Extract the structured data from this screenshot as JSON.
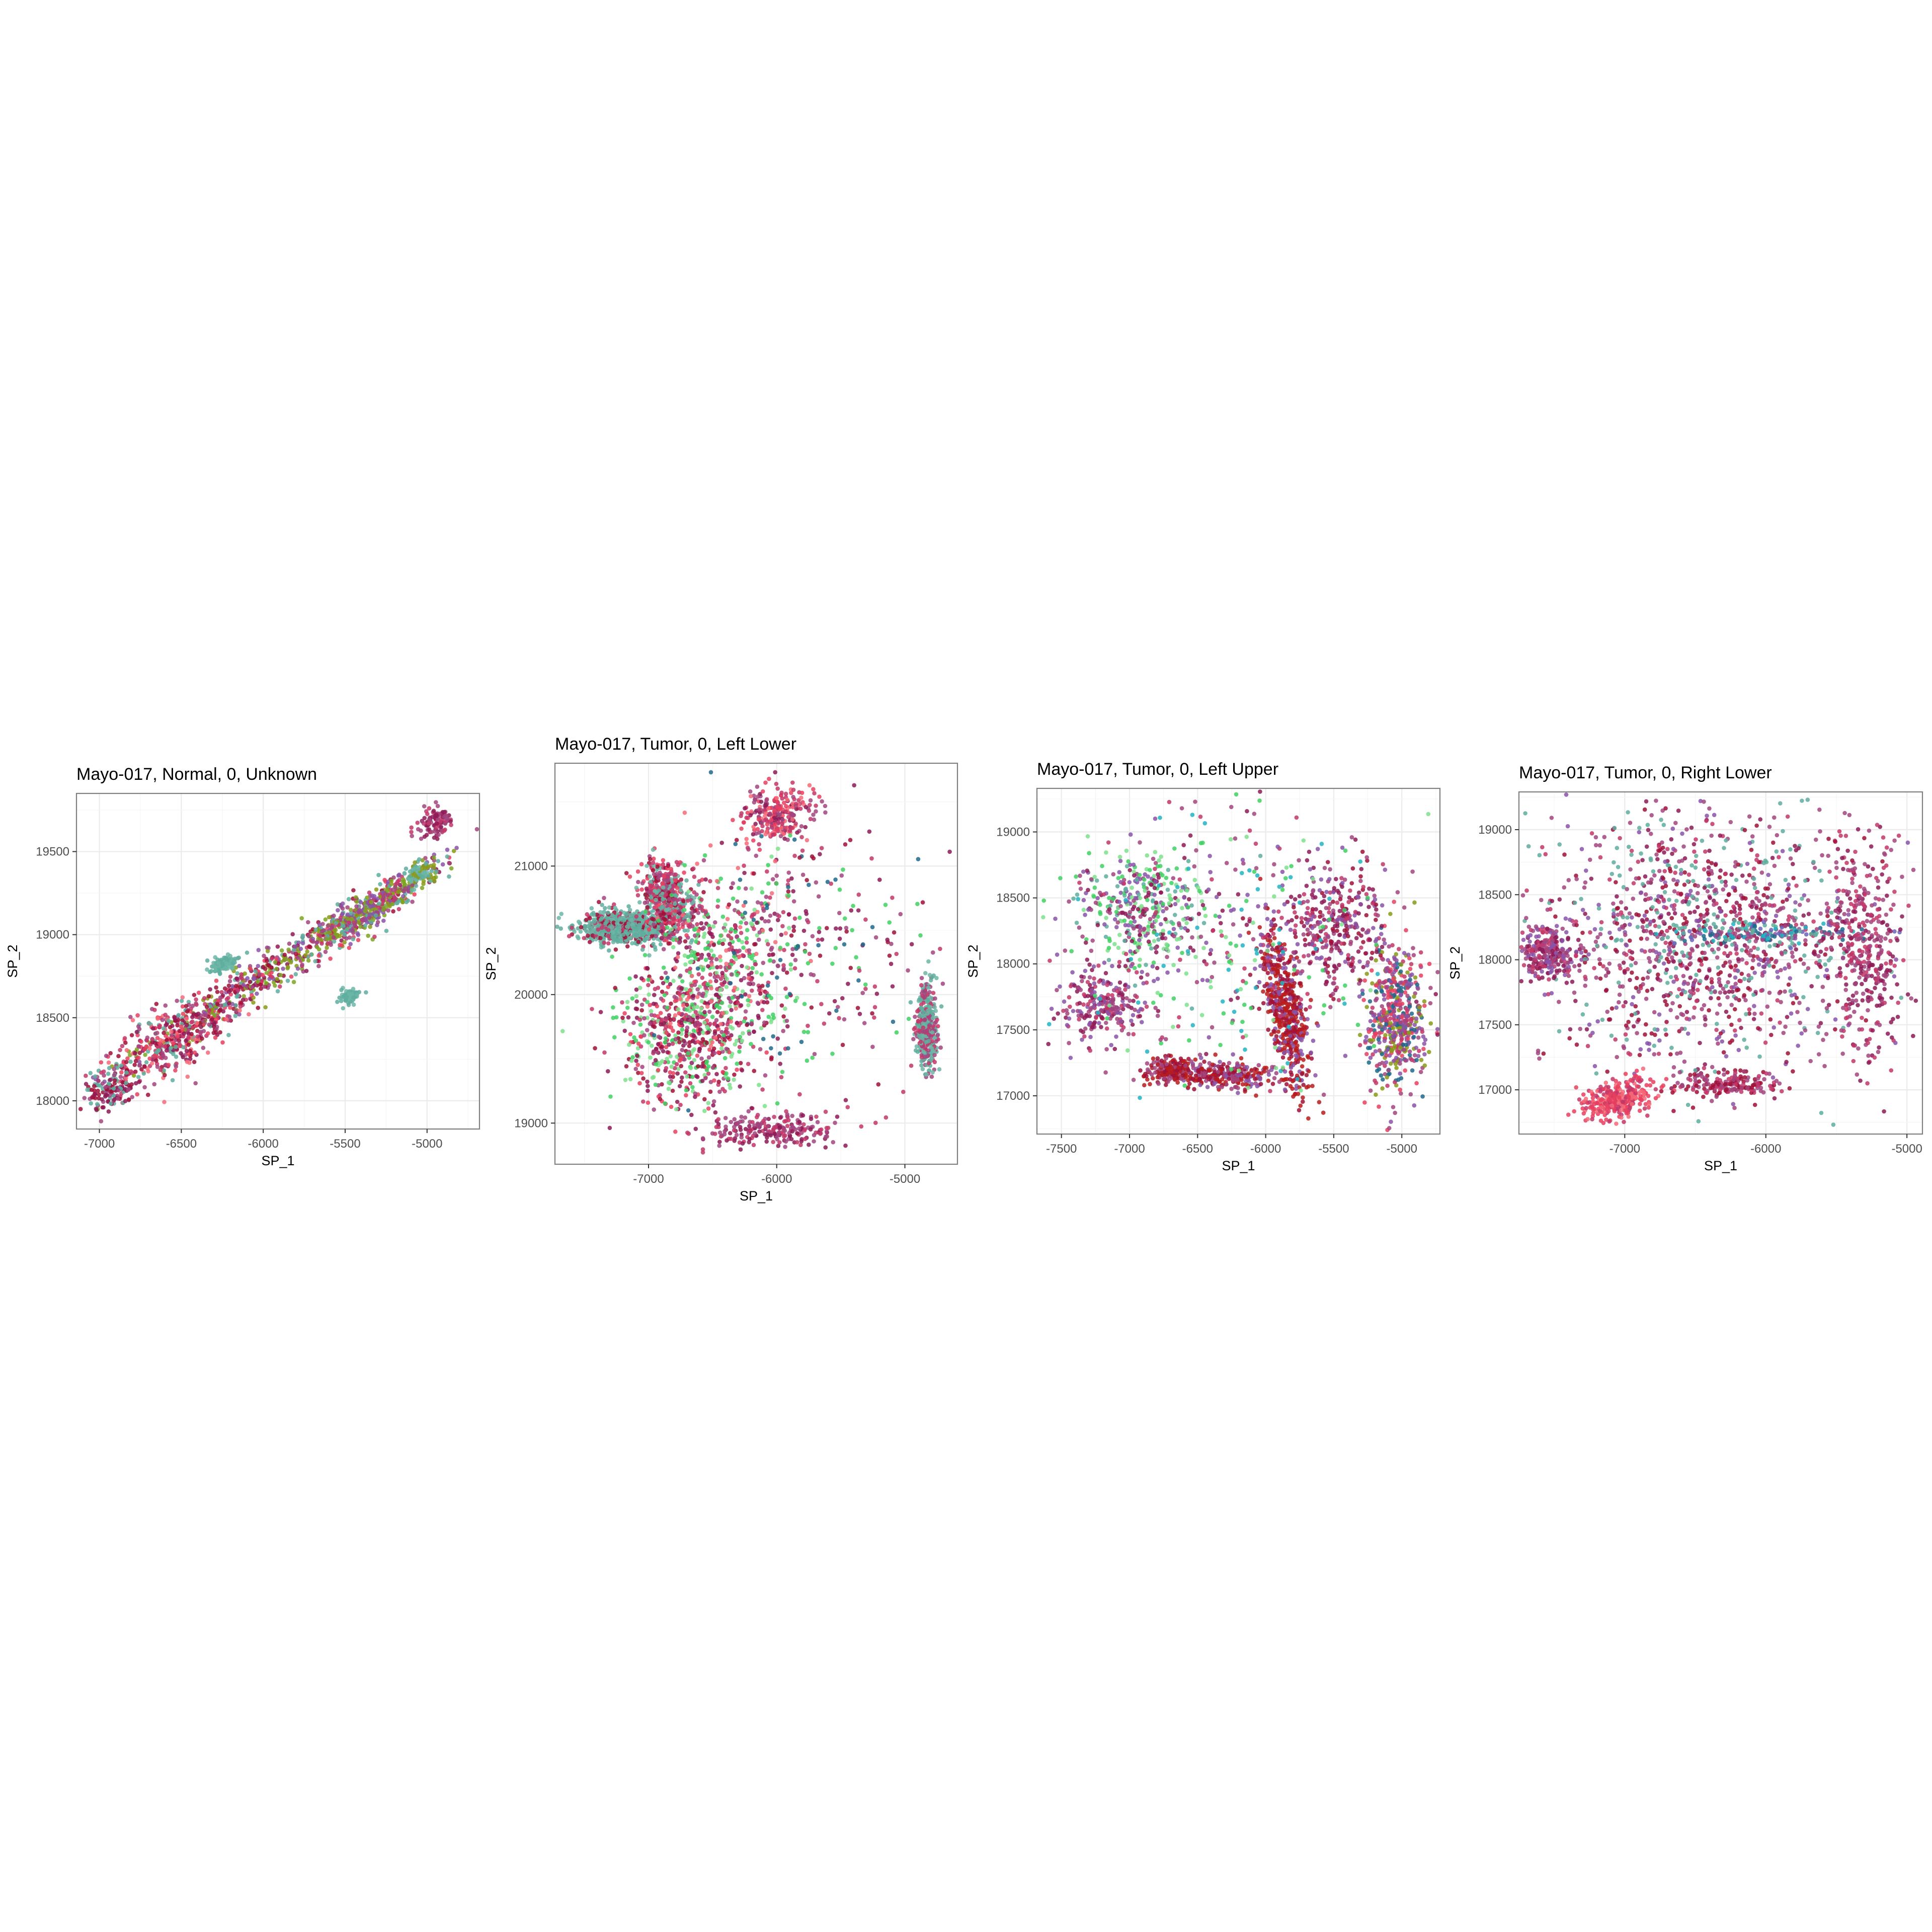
{
  "figure": {
    "background": "#ffffff",
    "panel_border": "#7f7f7f",
    "grid_major": "#ebebeb",
    "grid_minor": "#f5f5f5"
  },
  "palette": [
    "#a2457e",
    "#c3376a",
    "#8e1a56",
    "#a01038",
    "#b81c1c",
    "#e8405f",
    "#f46a78",
    "#5fae9f",
    "#6cb6a6",
    "#8a9a18",
    "#7ea522",
    "#8a53a8",
    "#6b62b8",
    "#3fd062",
    "#7ee08c",
    "#22b3c2",
    "#1f6a8c",
    "#a8c6e6",
    "#d17a3a"
  ],
  "chart_data": [
    {
      "type": "scatter",
      "title": "Mayo-017, Normal, 0, Unknown",
      "xlabel": "SP_1",
      "ylabel": "SP_2",
      "xlim": [
        -7140,
        -4680
      ],
      "ylim": [
        17830,
        19850
      ],
      "xticks": [
        -7000,
        -6500,
        -6000,
        -5500,
        -5000
      ],
      "yticks": [
        18000,
        18500,
        19000,
        19500
      ],
      "grid": true,
      "legend": "none",
      "points_note": "",
      "regions": [
        {
          "cx": -6000,
          "cy": 18750,
          "rx": 1050,
          "ry": 110,
          "angle": 32,
          "n": 700,
          "colors": [
            0,
            1,
            2,
            3,
            5,
            9,
            10,
            11,
            7
          ]
        },
        {
          "cx": -5350,
          "cy": 19150,
          "rx": 420,
          "ry": 80,
          "angle": 32,
          "n": 360,
          "colors": [
            9,
            10,
            0,
            1,
            7,
            11
          ]
        },
        {
          "cx": -6580,
          "cy": 18350,
          "rx": 380,
          "ry": 180,
          "angle": 28,
          "n": 320,
          "colors": [
            0,
            1,
            2,
            3,
            5,
            6,
            7
          ]
        },
        {
          "cx": -6930,
          "cy": 18060,
          "rx": 140,
          "ry": 90,
          "angle": 20,
          "n": 120,
          "colors": [
            2,
            0,
            3,
            7
          ]
        },
        {
          "cx": -6250,
          "cy": 18820,
          "rx": 80,
          "ry": 40,
          "angle": 20,
          "n": 110,
          "colors": [
            7,
            8
          ]
        },
        {
          "cx": -5480,
          "cy": 18630,
          "rx": 60,
          "ry": 40,
          "angle": 20,
          "n": 70,
          "colors": [
            7,
            8
          ]
        },
        {
          "cx": -5050,
          "cy": 19370,
          "rx": 90,
          "ry": 60,
          "angle": 30,
          "n": 90,
          "colors": [
            7,
            8,
            9
          ]
        },
        {
          "cx": -4950,
          "cy": 19670,
          "rx": 110,
          "ry": 80,
          "angle": 30,
          "n": 100,
          "colors": [
            0,
            1,
            2
          ]
        }
      ]
    },
    {
      "type": "scatter",
      "title": "Mayo-017, Tumor, 0, Left Lower",
      "xlabel": "SP_1",
      "ylabel": "SP_2",
      "xlim": [
        -7730,
        -4590
      ],
      "ylim": [
        18680,
        21800
      ],
      "xticks": [
        -7000,
        -6000,
        -5000
      ],
      "yticks": [
        19000,
        20000,
        21000
      ],
      "grid": true,
      "legend": "none",
      "regions": [
        {
          "cx": -7200,
          "cy": 20520,
          "rx": 300,
          "ry": 110,
          "angle": 0,
          "n": 900,
          "colors": [
            7,
            8,
            7,
            8,
            3,
            1
          ]
        },
        {
          "cx": -6850,
          "cy": 20750,
          "rx": 180,
          "ry": 260,
          "angle": 20,
          "n": 500,
          "colors": [
            7,
            8,
            1,
            3,
            5,
            0
          ]
        },
        {
          "cx": -6700,
          "cy": 19700,
          "rx": 500,
          "ry": 500,
          "angle": 0,
          "n": 650,
          "colors": [
            0,
            1,
            2,
            3,
            5,
            13,
            14
          ]
        },
        {
          "cx": -6400,
          "cy": 20300,
          "rx": 500,
          "ry": 600,
          "angle": 0,
          "n": 420,
          "colors": [
            0,
            1,
            2,
            13,
            14,
            6
          ]
        },
        {
          "cx": -6000,
          "cy": 21400,
          "rx": 250,
          "ry": 200,
          "angle": 0,
          "n": 260,
          "colors": [
            0,
            1,
            5,
            6,
            2
          ]
        },
        {
          "cx": -4830,
          "cy": 19750,
          "rx": 70,
          "ry": 300,
          "angle": 0,
          "n": 420,
          "colors": [
            7,
            8,
            0,
            1
          ]
        },
        {
          "cx": -6050,
          "cy": 18950,
          "rx": 450,
          "ry": 120,
          "angle": 0,
          "n": 220,
          "colors": [
            0,
            2,
            1
          ]
        },
        {
          "cx": -5800,
          "cy": 20400,
          "rx": 900,
          "ry": 900,
          "angle": 0,
          "n": 260,
          "colors": [
            0,
            1,
            2,
            13,
            16,
            3
          ]
        }
      ]
    },
    {
      "type": "scatter",
      "title": "Mayo-017, Tumor, 0, Left Upper",
      "xlabel": "SP_1",
      "ylabel": "SP_2",
      "xlim": [
        -7680,
        -4720
      ],
      "ylim": [
        16710,
        19330
      ],
      "xticks": [
        -7500,
        -7000,
        -6500,
        -6000,
        -5500,
        -5000
      ],
      "yticks": [
        17000,
        17500,
        18000,
        18500,
        19000
      ],
      "grid": true,
      "legend": "none",
      "regions": [
        {
          "cx": -5850,
          "cy": 17650,
          "rx": 120,
          "ry": 560,
          "angle": 10,
          "n": 520,
          "colors": [
            4,
            4,
            3,
            11
          ]
        },
        {
          "cx": -6300,
          "cy": 17150,
          "rx": 330,
          "ry": 90,
          "angle": 0,
          "n": 260,
          "colors": [
            4,
            3,
            11,
            0
          ]
        },
        {
          "cx": -6700,
          "cy": 17200,
          "rx": 170,
          "ry": 90,
          "angle": 0,
          "n": 200,
          "colors": [
            4,
            3,
            0
          ]
        },
        {
          "cx": -5050,
          "cy": 17600,
          "rx": 200,
          "ry": 500,
          "angle": 0,
          "n": 520,
          "colors": [
            0,
            1,
            11,
            9,
            5,
            16
          ]
        },
        {
          "cx": -6900,
          "cy": 18400,
          "rx": 450,
          "ry": 400,
          "angle": 0,
          "n": 380,
          "colors": [
            0,
            2,
            13,
            14,
            7,
            11
          ]
        },
        {
          "cx": -7200,
          "cy": 17700,
          "rx": 300,
          "ry": 250,
          "angle": 0,
          "n": 240,
          "colors": [
            0,
            1,
            2,
            11
          ]
        },
        {
          "cx": -5500,
          "cy": 18300,
          "rx": 350,
          "ry": 400,
          "angle": 0,
          "n": 320,
          "colors": [
            0,
            1,
            2,
            11,
            3
          ]
        },
        {
          "cx": -6200,
          "cy": 18100,
          "rx": 1200,
          "ry": 1050,
          "angle": 0,
          "n": 360,
          "colors": [
            0,
            1,
            2,
            13,
            14,
            11,
            15
          ]
        }
      ]
    },
    {
      "type": "scatter",
      "title": "Mayo-017, Tumor, 0, Right Lower",
      "xlabel": "SP_1",
      "ylabel": "SP_2",
      "xlim": [
        -7750,
        -4890
      ],
      "ylim": [
        16660,
        19290
      ],
      "xticks": [
        -7000,
        -6000,
        -5000
      ],
      "yticks": [
        17000,
        17500,
        18000,
        18500,
        19000
      ],
      "grid": true,
      "legend": "none",
      "regions": [
        {
          "cx": -6450,
          "cy": 18150,
          "rx": 1050,
          "ry": 1000,
          "angle": 0,
          "n": 1300,
          "colors": [
            0,
            0,
            1,
            2,
            3,
            11,
            7
          ]
        },
        {
          "cx": -7550,
          "cy": 18050,
          "rx": 180,
          "ry": 200,
          "angle": 0,
          "n": 260,
          "colors": [
            0,
            11,
            2,
            1
          ]
        },
        {
          "cx": -7050,
          "cy": 16930,
          "rx": 250,
          "ry": 120,
          "angle": 20,
          "n": 300,
          "colors": [
            5,
            1,
            5,
            6
          ]
        },
        {
          "cx": -6000,
          "cy": 18200,
          "rx": 550,
          "ry": 80,
          "angle": 0,
          "n": 180,
          "colors": [
            0,
            15,
            12,
            16,
            7
          ]
        },
        {
          "cx": -6250,
          "cy": 17050,
          "rx": 350,
          "ry": 90,
          "angle": 0,
          "n": 160,
          "colors": [
            1,
            3,
            0
          ]
        },
        {
          "cx": -5300,
          "cy": 18100,
          "rx": 250,
          "ry": 750,
          "angle": 0,
          "n": 360,
          "colors": [
            0,
            2,
            1
          ]
        }
      ]
    }
  ]
}
